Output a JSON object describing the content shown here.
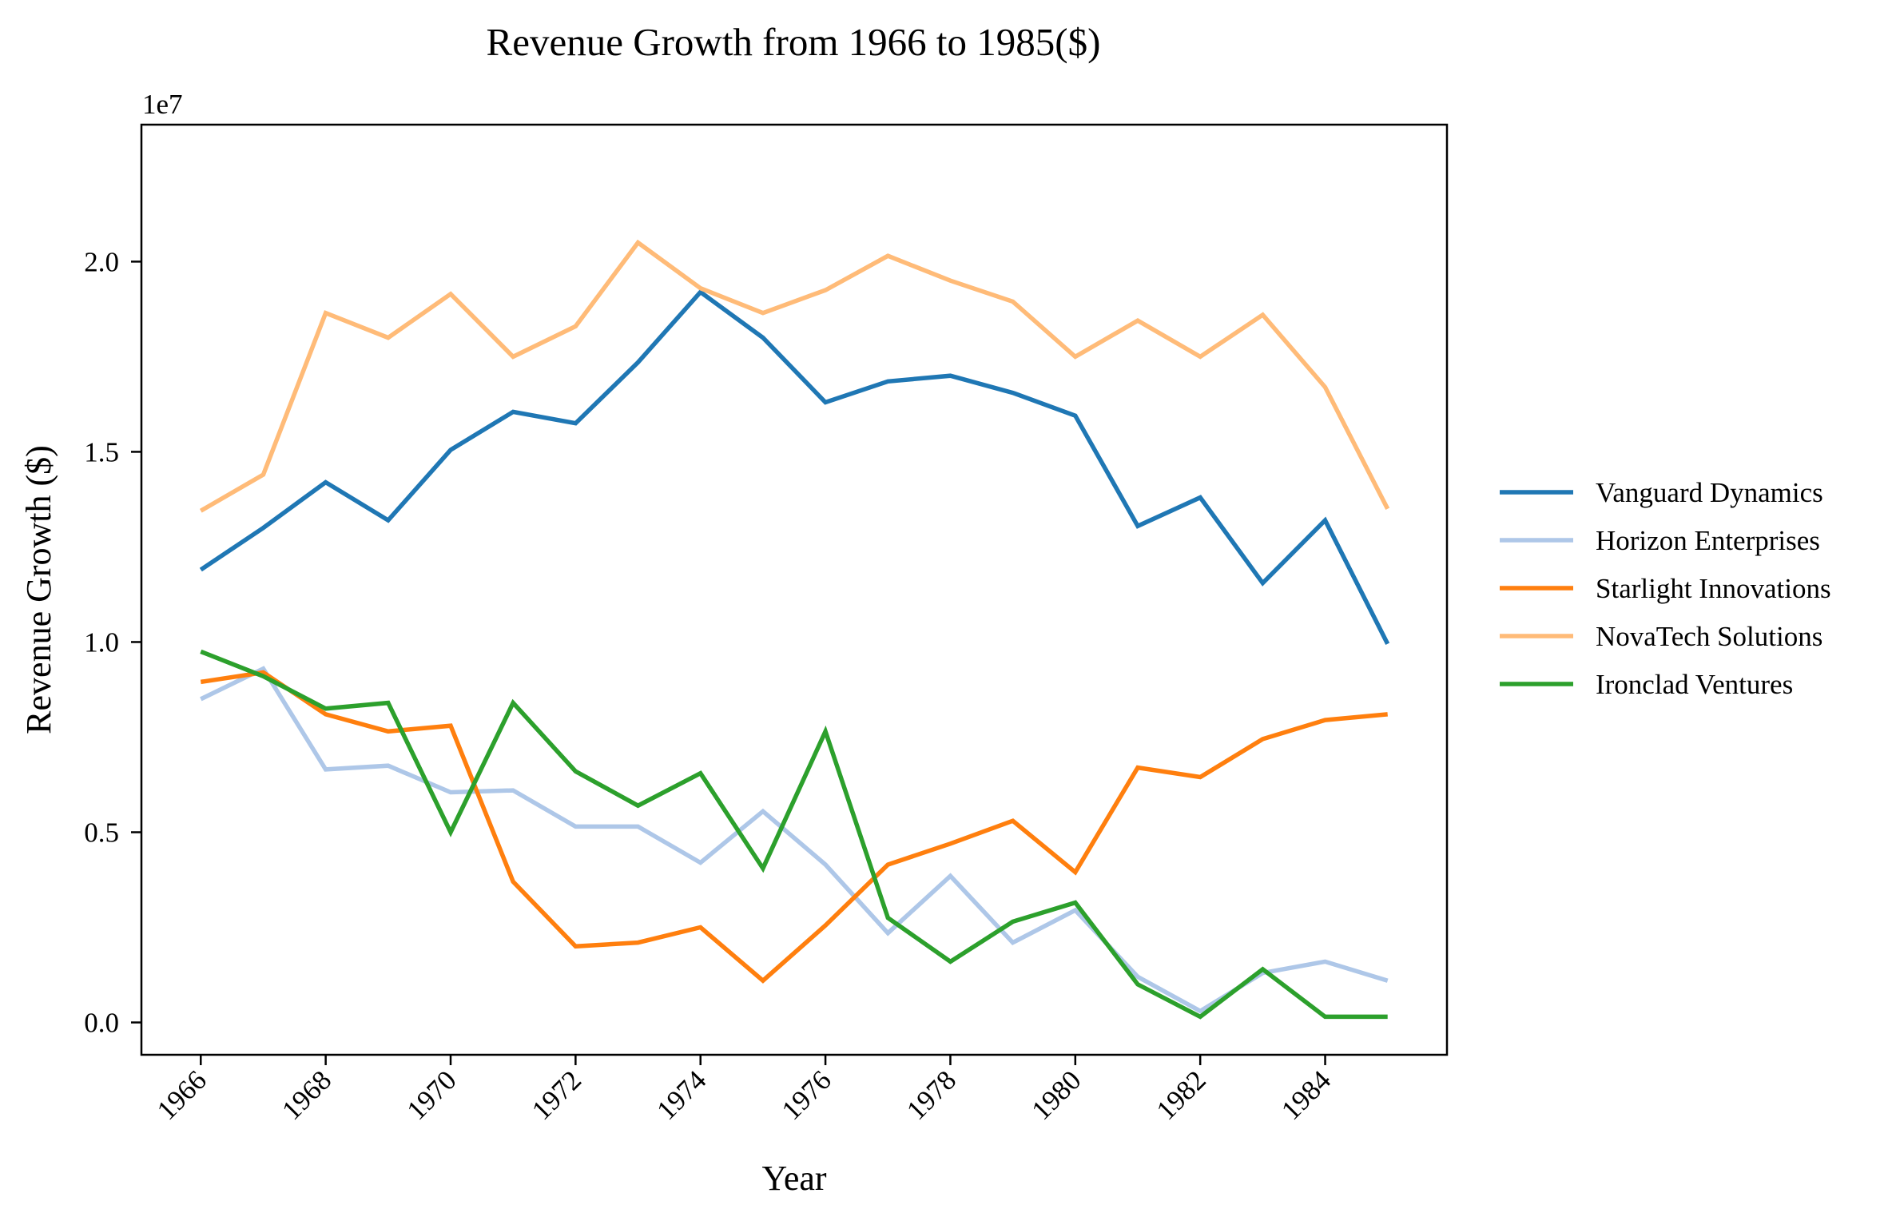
{
  "chart_data": {
    "type": "line",
    "title": "Revenue Growth from 1966 to 1985($)",
    "xlabel": "Year",
    "ylabel": "Revenue Growth ($)",
    "y_offset_label": "1e7",
    "x": [
      1966,
      1967,
      1968,
      1969,
      1970,
      1971,
      1972,
      1973,
      1974,
      1975,
      1976,
      1977,
      1978,
      1979,
      1980,
      1981,
      1982,
      1983,
      1984,
      1985
    ],
    "xlim": [
      1965.05,
      1985.95
    ],
    "ylim": [
      -850000,
      23600000
    ],
    "xticks": [
      1966,
      1968,
      1970,
      1972,
      1974,
      1976,
      1978,
      1980,
      1982,
      1984
    ],
    "yticks": [
      0,
      5000000,
      10000000,
      15000000,
      20000000
    ],
    "ytick_labels": [
      "0.0",
      "0.5",
      "1.0",
      "1.5",
      "2.0"
    ],
    "grid": false,
    "legend_position": "right",
    "series": [
      {
        "name": "Vanguard Dynamics",
        "color": "#1f77b4",
        "values": [
          11900000,
          13000000,
          14200000,
          13200000,
          15050000,
          16050000,
          15750000,
          17350000,
          19200000,
          18000000,
          16300000,
          16850000,
          17000000,
          16550000,
          15950000,
          13050000,
          13800000,
          11550000,
          13200000,
          9950000
        ]
      },
      {
        "name": "Horizon Enterprises",
        "color": "#aec7e8",
        "values": [
          8500000,
          9300000,
          6650000,
          6750000,
          6050000,
          6100000,
          5150000,
          5150000,
          4200000,
          5550000,
          4150000,
          2350000,
          3850000,
          2100000,
          2950000,
          1200000,
          300000,
          1300000,
          1600000,
          1100000
        ]
      },
      {
        "name": "Starlight Innovations",
        "color": "#ff7f0e",
        "values": [
          8950000,
          9200000,
          8100000,
          7650000,
          7800000,
          3700000,
          2000000,
          2100000,
          2500000,
          1100000,
          2550000,
          4150000,
          4700000,
          5300000,
          3950000,
          6700000,
          6450000,
          7450000,
          7950000,
          8100000
        ]
      },
      {
        "name": "NovaTech Solutions",
        "color": "#ffbb78",
        "values": [
          13450000,
          14400000,
          18650000,
          18000000,
          19150000,
          17500000,
          18300000,
          20500000,
          19300000,
          18650000,
          19250000,
          20150000,
          19500000,
          18950000,
          17500000,
          18450000,
          17500000,
          18600000,
          16700000,
          13500000
        ]
      },
      {
        "name": "Ironclad Ventures",
        "color": "#2ca02c",
        "values": [
          9750000,
          9100000,
          8250000,
          8400000,
          5000000,
          8400000,
          6600000,
          5700000,
          6550000,
          4050000,
          7650000,
          2750000,
          1600000,
          2650000,
          3150000,
          1000000,
          150000,
          1400000,
          150000,
          150000
        ]
      }
    ]
  }
}
